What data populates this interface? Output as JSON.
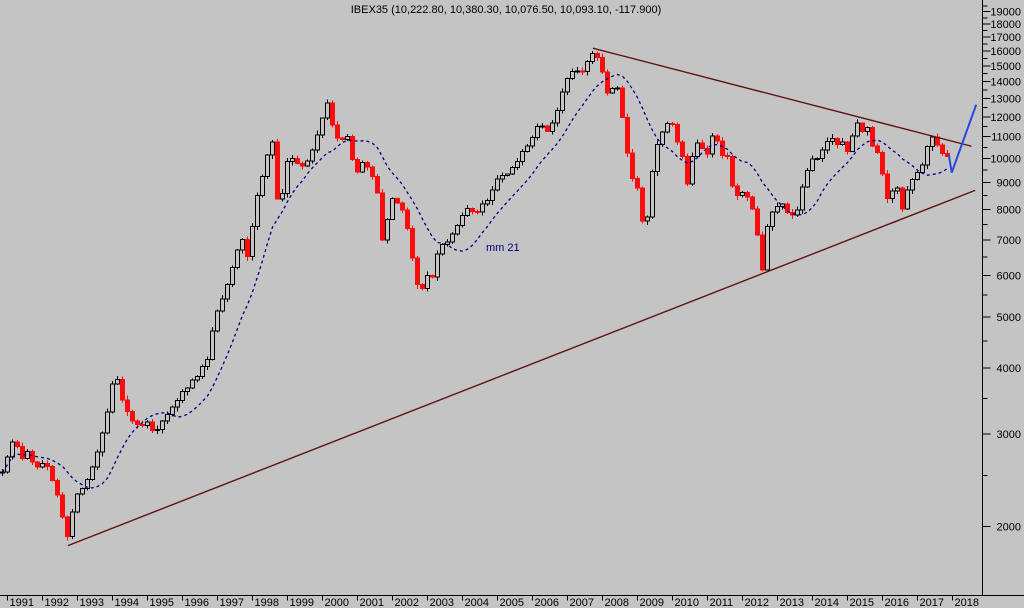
{
  "chart": {
    "title": "IBEX35 (10,222.80, 10,380.30, 10,076.50, 10,093.10, -117.900)",
    "ma_label": "mm 21",
    "colors": {
      "background": "#c4c4c4",
      "candle_up_outline": "#000000",
      "candle_down": "#f90d0d",
      "moving_average": "#00007f",
      "trendline": "#5e1313",
      "projection_arrow": "#2d46dc",
      "axis": "#000000"
    }
  },
  "chart_data": {
    "type": "candlestick",
    "symbol": "IBEX35",
    "title": "IBEX35 (10,222.80, 10,380.30, 10,076.50, 10,093.10, -117.900)",
    "last_bar": {
      "open": 10222.8,
      "high": 10380.3,
      "low": 10076.5,
      "close": 10093.1,
      "change": -117.9
    },
    "x_axis": {
      "label": "year",
      "ticks": [
        1991,
        1992,
        1993,
        1994,
        1995,
        1996,
        1997,
        1998,
        1999,
        2000,
        2001,
        2002,
        2003,
        2004,
        2005,
        2006,
        2007,
        2008,
        2009,
        2010,
        2011,
        2012,
        2013,
        2014,
        2015,
        2016,
        2017,
        2018
      ]
    },
    "y_axis": {
      "scale": "log",
      "major_ticks": [
        2000,
        3000,
        4000,
        5000,
        6000,
        7000,
        8000,
        9000,
        10000,
        11000,
        12000,
        13000,
        14000,
        15000,
        16000,
        17000,
        18000,
        19000
      ],
      "minor_tick_step": 500,
      "position": "right"
    },
    "moving_average": {
      "label": "mm 21",
      "period_months": 21
    },
    "close_path": [
      [
        1990.86,
        2560
      ],
      [
        1991.0,
        2680
      ],
      [
        1991.15,
        2890
      ],
      [
        1991.3,
        2820
      ],
      [
        1991.45,
        2690
      ],
      [
        1991.6,
        2780
      ],
      [
        1991.75,
        2640
      ],
      [
        1991.9,
        2560
      ],
      [
        1992.05,
        2660
      ],
      [
        1992.2,
        2540
      ],
      [
        1992.4,
        2330
      ],
      [
        1992.6,
        2060
      ],
      [
        1992.74,
        1870
      ],
      [
        1992.9,
        2250
      ],
      [
        1993.05,
        2300
      ],
      [
        1993.3,
        2470
      ],
      [
        1993.55,
        2740
      ],
      [
        1993.8,
        3120
      ],
      [
        1994.0,
        3740
      ],
      [
        1994.1,
        3880
      ],
      [
        1994.3,
        3430
      ],
      [
        1994.55,
        3210
      ],
      [
        1994.8,
        3060
      ],
      [
        1995.0,
        3190
      ],
      [
        1995.2,
        2960
      ],
      [
        1995.45,
        3210
      ],
      [
        1995.7,
        3370
      ],
      [
        1995.95,
        3560
      ],
      [
        1996.2,
        3740
      ],
      [
        1996.45,
        3870
      ],
      [
        1996.7,
        4140
      ],
      [
        1996.95,
        5050
      ],
      [
        1997.2,
        5560
      ],
      [
        1997.45,
        6310
      ],
      [
        1997.7,
        7250
      ],
      [
        1997.8,
        6150
      ],
      [
        1997.95,
        7150
      ],
      [
        1998.1,
        8220
      ],
      [
        1998.3,
        9380
      ],
      [
        1998.5,
        10480
      ],
      [
        1998.58,
        10880
      ],
      [
        1998.7,
        8620
      ],
      [
        1998.78,
        7480
      ],
      [
        1998.95,
        9740
      ],
      [
        1999.1,
        10040
      ],
      [
        1999.3,
        9830
      ],
      [
        1999.5,
        9640
      ],
      [
        1999.7,
        10220
      ],
      [
        1999.95,
        11640
      ],
      [
        2000.15,
        12730
      ],
      [
        2000.35,
        11180
      ],
      [
        2000.55,
        10720
      ],
      [
        2000.72,
        11050
      ],
      [
        2000.95,
        9240
      ],
      [
        2001.15,
        9890
      ],
      [
        2001.35,
        9430
      ],
      [
        2001.55,
        8870
      ],
      [
        2001.68,
        7750
      ],
      [
        2001.74,
        6560
      ],
      [
        2001.9,
        8160
      ],
      [
        2002.05,
        8420
      ],
      [
        2002.25,
        8080
      ],
      [
        2002.45,
        7230
      ],
      [
        2002.6,
        6280
      ],
      [
        2002.78,
        5420
      ],
      [
        2002.95,
        6080
      ],
      [
        2003.1,
        5840
      ],
      [
        2003.3,
        6580
      ],
      [
        2003.5,
        6940
      ],
      [
        2003.7,
        7120
      ],
      [
        2003.95,
        7720
      ],
      [
        2004.15,
        8080
      ],
      [
        2004.3,
        7830
      ],
      [
        2004.5,
        8010
      ],
      [
        2004.75,
        8410
      ],
      [
        2004.95,
        9070
      ],
      [
        2005.2,
        9340
      ],
      [
        2005.45,
        9560
      ],
      [
        2005.7,
        10240
      ],
      [
        2005.95,
        10720
      ],
      [
        2006.2,
        11590
      ],
      [
        2006.4,
        11220
      ],
      [
        2006.6,
        11810
      ],
      [
        2006.8,
        12980
      ],
      [
        2006.95,
        14140
      ],
      [
        2007.2,
        14780
      ],
      [
        2007.35,
        14420
      ],
      [
        2007.5,
        14980
      ],
      [
        2007.74,
        15820
      ],
      [
        2007.88,
        15620
      ],
      [
        2007.97,
        15180
      ],
      [
        2008.08,
        13230
      ],
      [
        2008.2,
        13440
      ],
      [
        2008.4,
        13990
      ],
      [
        2008.6,
        11620
      ],
      [
        2008.8,
        9220
      ],
      [
        2008.95,
        9180
      ],
      [
        2009.1,
        7980
      ],
      [
        2009.22,
        6880
      ],
      [
        2009.4,
        9180
      ],
      [
        2009.6,
        10760
      ],
      [
        2009.8,
        11680
      ],
      [
        2009.97,
        11930
      ],
      [
        2010.08,
        10980
      ],
      [
        2010.25,
        10480
      ],
      [
        2010.45,
        8720
      ],
      [
        2010.6,
        10470
      ],
      [
        2010.8,
        10680
      ],
      [
        2010.97,
        9860
      ],
      [
        2011.1,
        10840
      ],
      [
        2011.2,
        11090
      ],
      [
        2011.4,
        10240
      ],
      [
        2011.55,
        10140
      ],
      [
        2011.68,
        9180
      ],
      [
        2011.77,
        8210
      ],
      [
        2011.9,
        8560
      ],
      [
        2012.05,
        8540
      ],
      [
        2012.2,
        8480
      ],
      [
        2012.35,
        7780
      ],
      [
        2012.48,
        6780
      ],
      [
        2012.58,
        6090
      ],
      [
        2012.72,
        7480
      ],
      [
        2012.85,
        7840
      ],
      [
        2012.97,
        8160
      ],
      [
        2013.1,
        8240
      ],
      [
        2013.3,
        7920
      ],
      [
        2013.5,
        7680
      ],
      [
        2013.7,
        8780
      ],
      [
        2013.88,
        9590
      ],
      [
        2013.97,
        9910
      ],
      [
        2014.15,
        10110
      ],
      [
        2014.3,
        10440
      ],
      [
        2014.5,
        11120
      ],
      [
        2014.68,
        10520
      ],
      [
        2014.8,
        10940
      ],
      [
        2014.97,
        10280
      ],
      [
        2015.1,
        10760
      ],
      [
        2015.3,
        11620
      ],
      [
        2015.5,
        11180
      ],
      [
        2015.6,
        11480
      ],
      [
        2015.77,
        9980
      ],
      [
        2015.88,
        10310
      ],
      [
        2015.97,
        9540
      ],
      [
        2016.08,
        8720
      ],
      [
        2016.16,
        8230
      ],
      [
        2016.3,
        8790
      ],
      [
        2016.45,
        8850
      ],
      [
        2016.55,
        7950
      ],
      [
        2016.7,
        8720
      ],
      [
        2016.85,
        9120
      ],
      [
        2016.97,
        9360
      ],
      [
        2017.1,
        9570
      ],
      [
        2017.25,
        10260
      ],
      [
        2017.4,
        10960
      ],
      [
        2017.55,
        10660
      ],
      [
        2017.7,
        10310
      ],
      [
        2017.85,
        10250
      ],
      [
        2017.97,
        10090
      ]
    ],
    "annotations": {
      "lower_trendline": {
        "from": [
          1992.74,
          1840
        ],
        "to": [
          2018.66,
          8700
        ]
      },
      "upper_trendline": {
        "from": [
          2007.74,
          16200
        ],
        "to": [
          2018.56,
          10550
        ]
      },
      "projection_arrow": {
        "points": [
          [
            2017.91,
            10150
          ],
          [
            2017.99,
            9400
          ],
          [
            2018.69,
            12650
          ]
        ]
      }
    }
  }
}
